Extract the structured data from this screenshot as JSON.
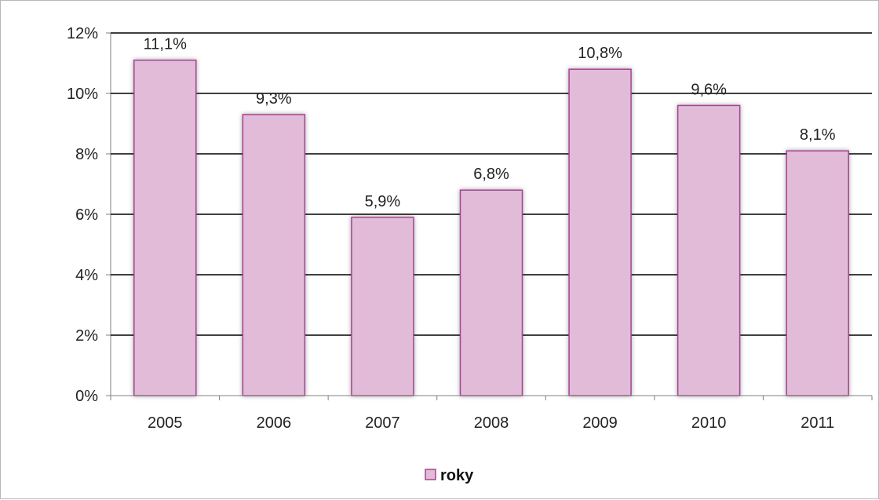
{
  "chart_data": {
    "type": "bar",
    "categories": [
      "2005",
      "2006",
      "2007",
      "2008",
      "2009",
      "2010",
      "2011"
    ],
    "series": [
      {
        "name": "roky",
        "values": [
          11.1,
          9.3,
          5.9,
          6.8,
          10.8,
          9.6,
          8.1
        ],
        "data_labels": [
          "11,1%",
          "9,3%",
          "5,9%",
          "6,8%",
          "10,8%",
          "9,6%",
          "8,1%"
        ]
      }
    ],
    "ylim": [
      0,
      12
    ],
    "y_ticks": [
      0,
      2,
      4,
      6,
      8,
      10,
      12
    ],
    "y_tick_labels": [
      "0%",
      "2%",
      "4%",
      "6%",
      "8%",
      "10%",
      "12%"
    ],
    "grid": true,
    "legend_position": "bottom",
    "colors": {
      "bar_fill": "#e2bbd9",
      "bar_stroke": "#a3458f",
      "gridline": "#000000",
      "frame_border": "#b8b8b8"
    }
  }
}
